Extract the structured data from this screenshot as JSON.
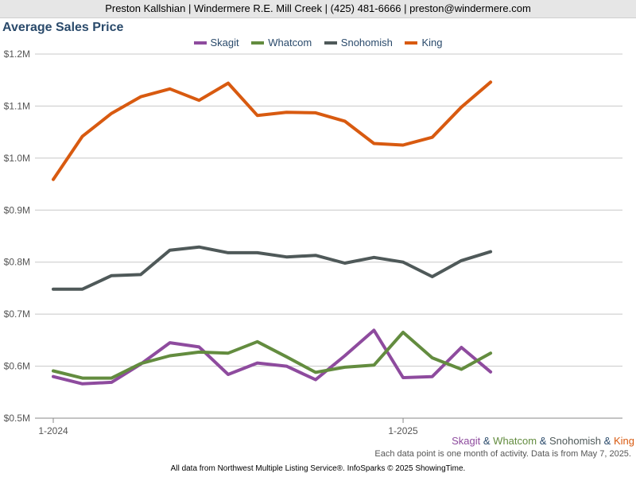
{
  "header": {
    "contact": "Preston Kallshian | Windermere R.E. Mill Creek | (425) 481-6666 | preston@windermere.com"
  },
  "legend_items": [
    {
      "name": "Skagit",
      "color": "#8e4b9e"
    },
    {
      "name": "Whatcom",
      "color": "#638c3f"
    },
    {
      "name": "Snohomish",
      "color": "#4f5959"
    },
    {
      "name": "King",
      "color": "#d85a10"
    }
  ],
  "caption": {
    "separator": "&",
    "note": "Each data point is one month of activity. Data is from May 7, 2025."
  },
  "footer": {
    "text": "All data from Northwest Multiple Listing Service®. InfoSparks © 2025 ShowingTime."
  },
  "chart_data": {
    "type": "line",
    "title": "Average Sales Price",
    "xlabel": "",
    "ylabel": "",
    "x": [
      "2024-01",
      "2024-02",
      "2024-03",
      "2024-04",
      "2024-05",
      "2024-06",
      "2024-07",
      "2024-08",
      "2024-09",
      "2024-10",
      "2024-11",
      "2024-12",
      "2025-01",
      "2025-02",
      "2025-03",
      "2025-04"
    ],
    "x_tick_labels": [
      {
        "x": "2024-01",
        "label": "1-2024"
      },
      {
        "x": "2025-01",
        "label": "1-2025"
      }
    ],
    "y_ticks": [
      0.5,
      0.6,
      0.7,
      0.8,
      0.9,
      1.0,
      1.1,
      1.2
    ],
    "y_tick_labels": [
      "$0.5M",
      "$0.6M",
      "$0.7M",
      "$0.8M",
      "$0.9M",
      "$1.0M",
      "$1.1M",
      "$1.2M"
    ],
    "ylim": [
      0.5,
      1.2
    ],
    "grid": true,
    "legend_position": "top-center",
    "series": [
      {
        "name": "Skagit",
        "color": "#8e4b9e",
        "values": [
          0.58,
          0.566,
          0.569,
          0.604,
          0.645,
          0.637,
          0.584,
          0.606,
          0.6,
          0.574,
          0.62,
          0.669,
          0.578,
          0.58,
          0.636,
          0.589
        ]
      },
      {
        "name": "Whatcom",
        "color": "#638c3f",
        "values": [
          0.591,
          0.577,
          0.577,
          0.605,
          0.62,
          0.627,
          0.625,
          0.647,
          0.618,
          0.588,
          0.598,
          0.602,
          0.665,
          0.616,
          0.594,
          0.625
        ]
      },
      {
        "name": "Snohomish",
        "color": "#4f5959",
        "values": [
          0.748,
          0.748,
          0.774,
          0.776,
          0.823,
          0.829,
          0.818,
          0.818,
          0.81,
          0.813,
          0.798,
          0.809,
          0.8,
          0.772,
          0.803,
          0.82
        ]
      },
      {
        "name": "King",
        "color": "#d85a10",
        "values": [
          0.959,
          1.042,
          1.086,
          1.118,
          1.133,
          1.111,
          1.144,
          1.082,
          1.088,
          1.087,
          1.071,
          1.028,
          1.025,
          1.04,
          1.098,
          1.146
        ]
      }
    ]
  }
}
